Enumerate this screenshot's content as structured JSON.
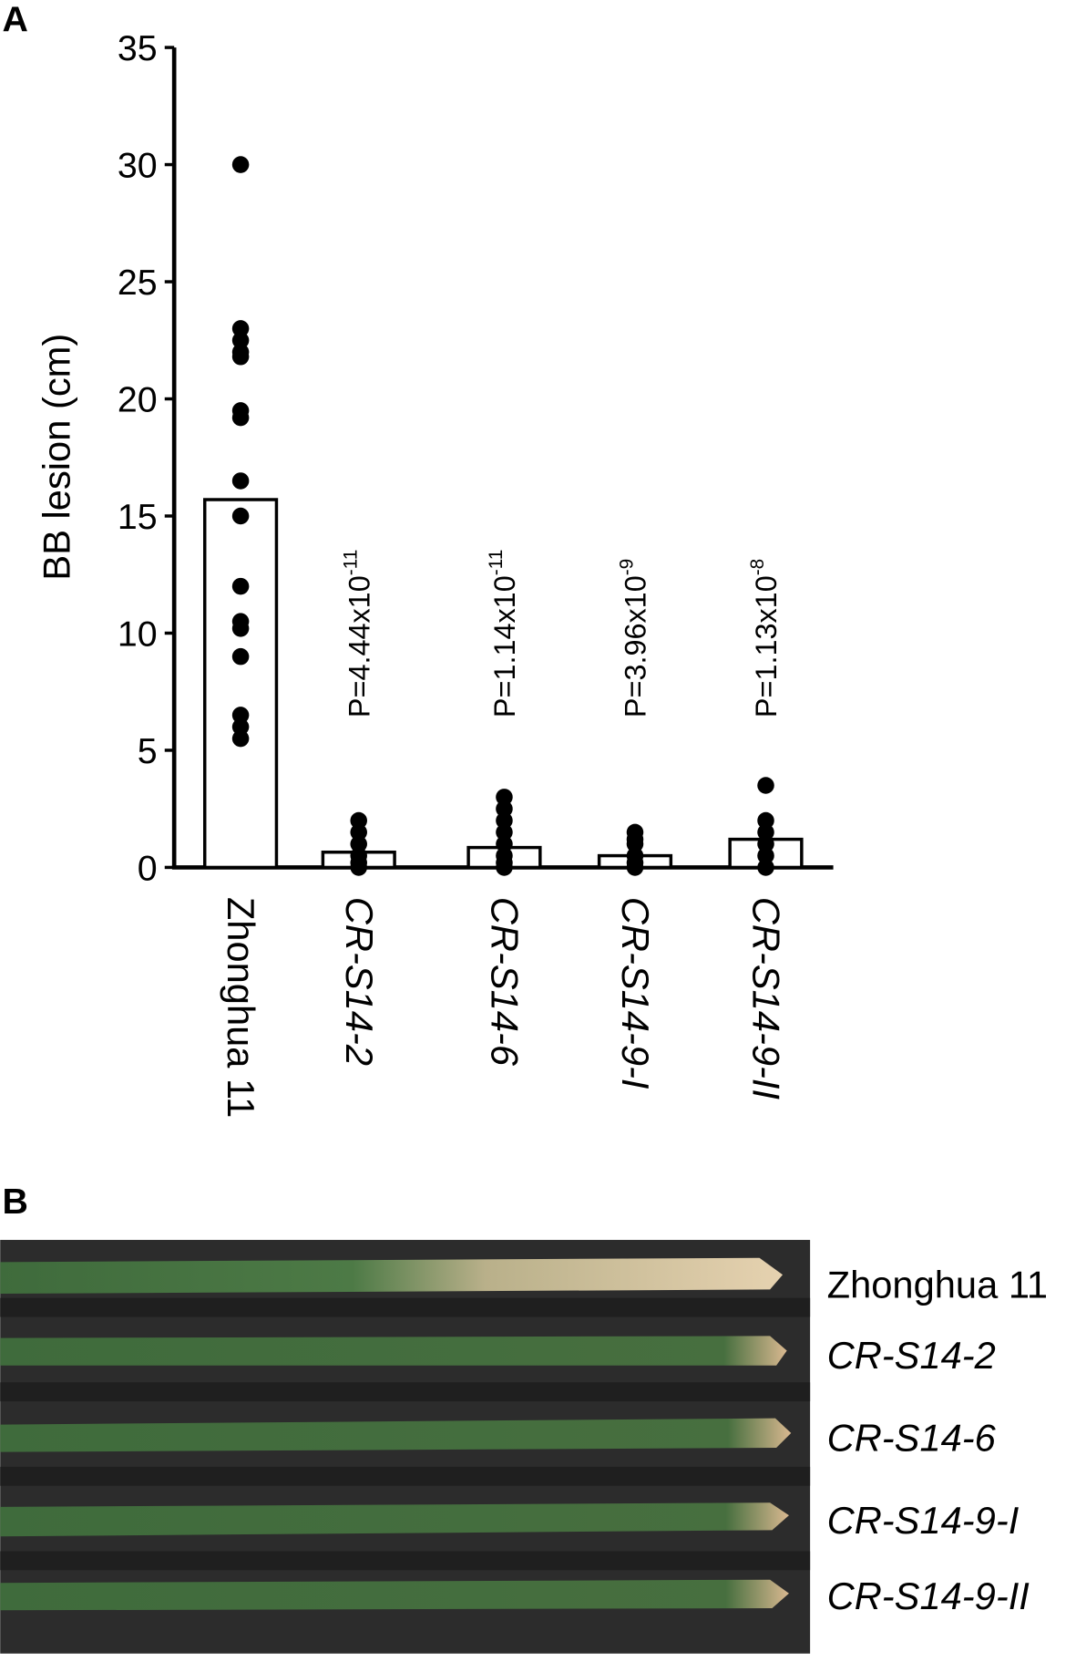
{
  "panels": [
    "A",
    "B"
  ],
  "chart_data": {
    "type": "bar",
    "ylabel": "BB lesion (cm)",
    "categories": [
      "Zhonghua 11",
      "CR-S14-2",
      "CR-S14-6",
      "CR-S14-9-I",
      "CR-S14-9-II"
    ],
    "italic_categories": [
      false,
      true,
      true,
      true,
      true
    ],
    "values": [
      15.7,
      0.65,
      0.85,
      0.5,
      1.2
    ],
    "color": "#ffffff",
    "edge_color": "#000000",
    "points": [
      [
        30,
        23,
        22.5,
        22,
        21.8,
        19.5,
        19.2,
        16.5,
        15,
        12,
        10.5,
        10.2,
        9,
        6.5,
        6,
        5.5
      ],
      [
        2,
        1.5,
        1,
        0.5,
        0.2,
        0
      ],
      [
        3,
        2.5,
        2,
        1.5,
        1,
        0.5,
        0.2,
        0
      ],
      [
        1.5,
        1.2,
        1,
        0.5,
        0.2,
        0
      ],
      [
        3.5,
        2,
        1.5,
        1,
        0.5,
        0
      ]
    ],
    "point_color": "#000000",
    "annotations": [
      {
        "category": 1,
        "text": "P=4.44x10",
        "exponent": "-11"
      },
      {
        "category": 2,
        "text": "P=1.14x10",
        "exponent": "-11"
      },
      {
        "category": 3,
        "text": "P=3.96x10",
        "exponent": "-9"
      },
      {
        "category": 4,
        "text": "P=1.13x10",
        "exponent": "-8"
      }
    ],
    "ylim": [
      0,
      35
    ],
    "yticks": [
      0,
      5,
      10,
      15,
      20,
      25,
      30,
      35
    ],
    "grid": false
  },
  "leaf_photo": {
    "labels": [
      "Zhonghua 11",
      "CR-S14-2",
      "CR-S14-6",
      "CR-S14-9-I",
      "CR-S14-9-II"
    ]
  }
}
